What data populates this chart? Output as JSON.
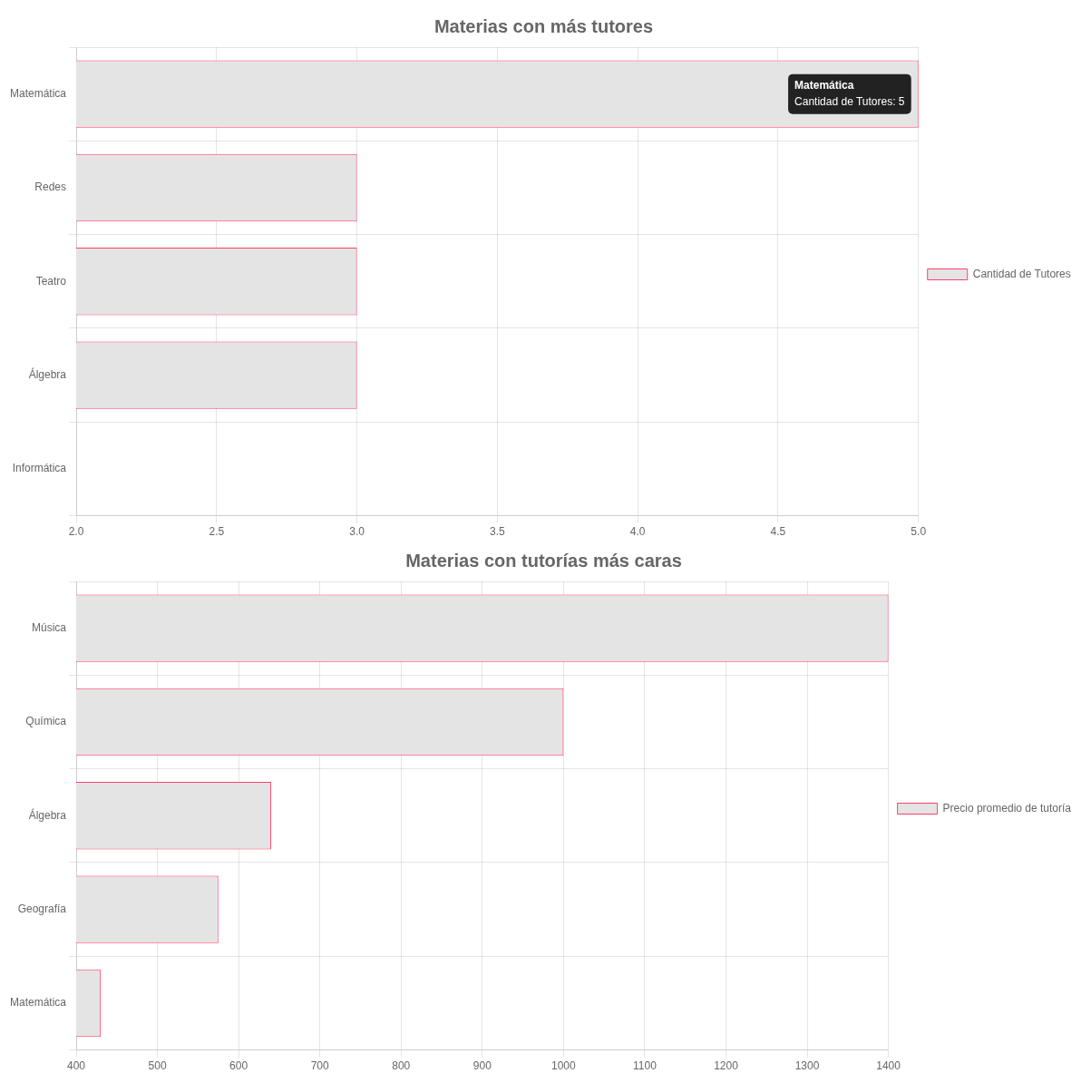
{
  "chart_data": [
    {
      "type": "bar",
      "orientation": "horizontal",
      "title": "Materias con más tutores",
      "categories": [
        "Matemática",
        "Redes",
        "Teatro",
        "Álgebra",
        "Informática"
      ],
      "series": [
        {
          "name": "Cantidad de Tutores",
          "color": "#e4e4e4",
          "values": [
            5,
            3,
            3,
            3,
            2
          ]
        }
      ],
      "xlim": [
        2,
        5
      ],
      "xticks": [
        {
          "value": 2,
          "label": "2.0"
        },
        {
          "value": 2.5,
          "label": "2.5"
        },
        {
          "value": 3,
          "label": "3.0"
        },
        {
          "value": 3.5,
          "label": "3.5"
        },
        {
          "value": 4,
          "label": "4.0"
        },
        {
          "value": 4.5,
          "label": "4.5"
        },
        {
          "value": 5,
          "label": "5.0"
        }
      ],
      "grid": true,
      "legend": "right",
      "annotations": [
        {
          "text": "Matemática\nCantidad de Tutores: 5",
          "x": 5,
          "y": "Matemática"
        }
      ]
    },
    {
      "type": "bar",
      "orientation": "horizontal",
      "title": "Materias con tutorías más caras",
      "categories": [
        "Música",
        "Química",
        "Álgebra",
        "Geografía",
        "Matemática"
      ],
      "series": [
        {
          "name": "Precio promedio de tutoría",
          "color": "#e4e4e4",
          "values": [
            1400,
            1000,
            640,
            575,
            430
          ]
        }
      ],
      "xlim": [
        400,
        1400
      ],
      "xticks": [
        400,
        500,
        600,
        700,
        800,
        900,
        1000,
        1100,
        1200,
        1300,
        1400
      ],
      "grid": true,
      "legend": "right"
    }
  ]
}
